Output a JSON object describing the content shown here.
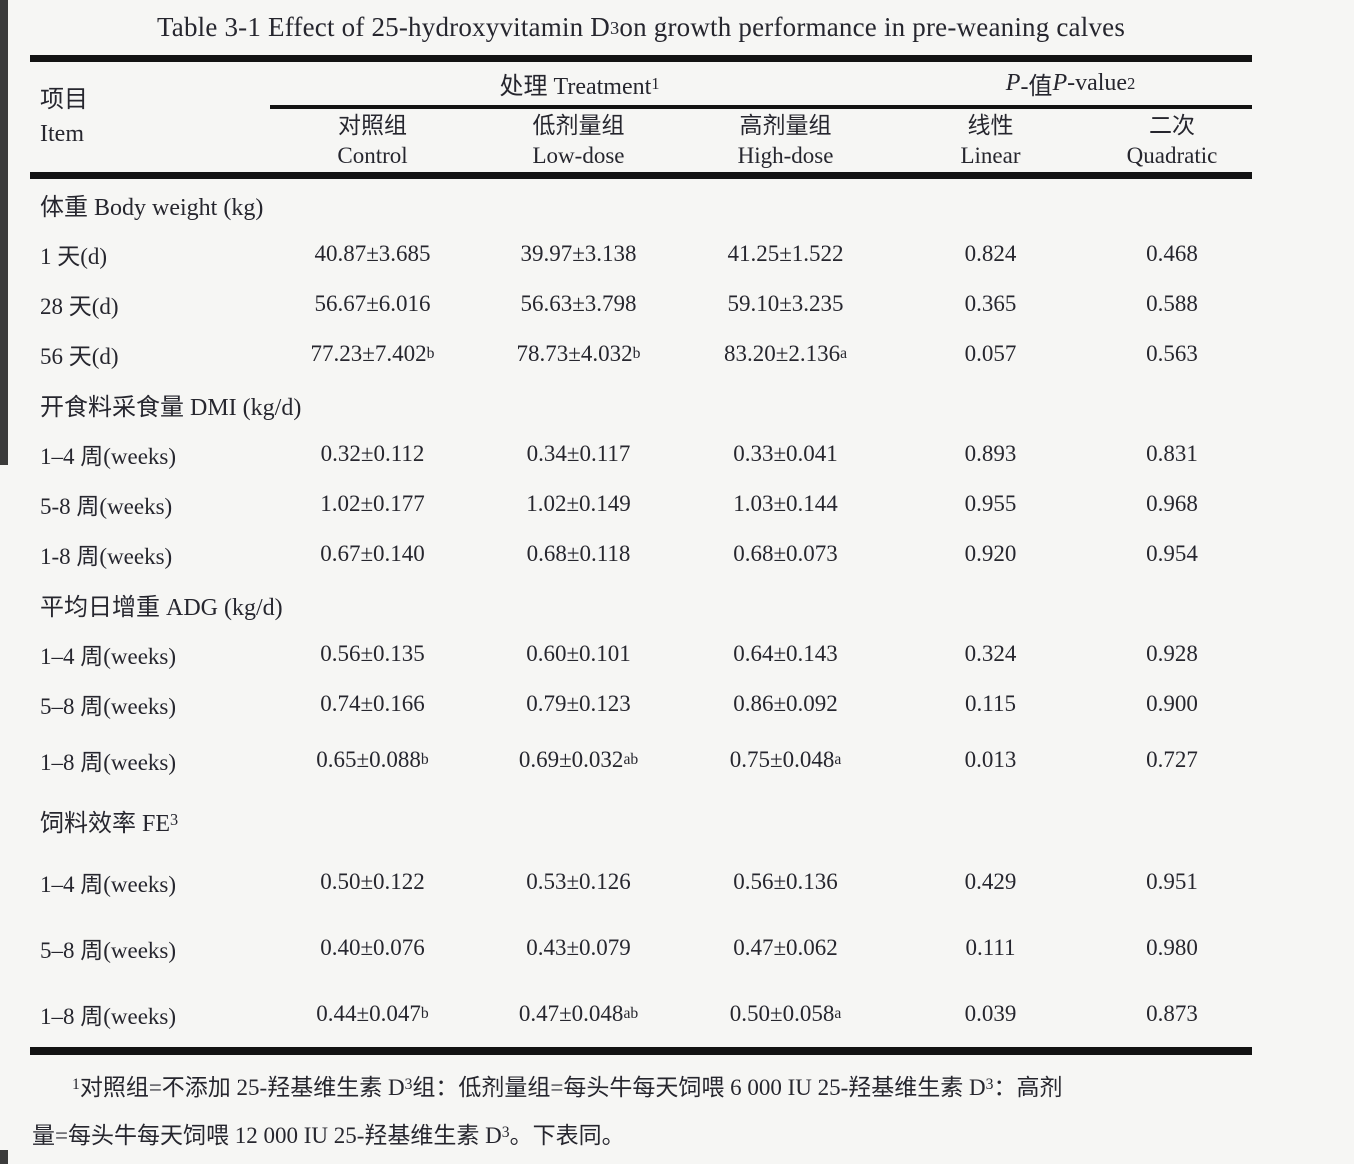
{
  "title": "Table 3-1 Effect of 25-hydroxyvitamin D{_3} on growth performance in pre-weaning calves",
  "header": {
    "item": {
      "zh": "项目",
      "en": "Item"
    },
    "treatment_group": "处理 Treatment{^1}",
    "pvalue_group": "{/P}-值 {/P}-value{^2}",
    "columns": [
      {
        "zh": "对照组",
        "en": "Control"
      },
      {
        "zh": "低剂量组",
        "en": "Low-dose"
      },
      {
        "zh": "高剂量组",
        "en": "High-dose"
      },
      {
        "zh": "线性",
        "en": "Linear"
      },
      {
        "zh": "二次",
        "en": "Quadratic"
      }
    ]
  },
  "sections": [
    {
      "label": "体重 Body weight (kg)",
      "rows": [
        {
          "item": "1 天(d)",
          "values": [
            "40.87±3.685",
            "39.97±3.138",
            "41.25±1.522",
            "0.824",
            "0.468"
          ]
        },
        {
          "item": "28 天(d)",
          "values": [
            "56.67±6.016",
            "56.63±3.798",
            "59.10±3.235",
            "0.365",
            "0.588"
          ]
        },
        {
          "item": "56 天(d)",
          "values": [
            "77.23±7.402{^b}",
            "78.73±4.032{^b}",
            "83.20±2.136{^a}",
            "0.057",
            "0.563"
          ]
        }
      ]
    },
    {
      "label": "开食料采食量 DMI (kg/d)",
      "rows": [
        {
          "item": "1–4 周(weeks)",
          "values": [
            "0.32±0.112",
            "0.34±0.117",
            "0.33±0.041",
            "0.893",
            "0.831"
          ]
        },
        {
          "item": "5-8 周(weeks)",
          "values": [
            "1.02±0.177",
            "1.02±0.149",
            "1.03±0.144",
            "0.955",
            "0.968"
          ]
        },
        {
          "item": "1-8 周(weeks)",
          "values": [
            "0.67±0.140",
            "0.68±0.118",
            "0.68±0.073",
            "0.920",
            "0.954"
          ]
        }
      ]
    },
    {
      "label": "平均日增重 ADG (kg/d)",
      "rows": [
        {
          "item": "1–4 周(weeks)",
          "values": [
            "0.56±0.135",
            "0.60±0.101",
            "0.64±0.143",
            "0.324",
            "0.928"
          ]
        },
        {
          "item": "5–8 周(weeks)",
          "values": [
            "0.74±0.166",
            "0.79±0.123",
            "0.86±0.092",
            "0.115",
            "0.900"
          ]
        },
        {
          "item": "1–8 周(weeks)",
          "values": [
            "0.65±0.088{^b}",
            "0.69±0.032{^ab}",
            "0.75±0.048{^a}",
            "0.013",
            "0.727"
          ]
        }
      ]
    },
    {
      "label": "饲料效率 FE{^3}",
      "rows": [
        {
          "item": "1–4 周(weeks)",
          "values": [
            "0.50±0.122",
            "0.53±0.126",
            "0.56±0.136",
            "0.429",
            "0.951"
          ]
        },
        {
          "item": "5–8 周(weeks)",
          "values": [
            "0.40±0.076",
            "0.43±0.079",
            "0.47±0.062",
            "0.111",
            "0.980"
          ]
        },
        {
          "item": "1–8 周(weeks)",
          "values": [
            "0.44±0.047{^b}",
            "0.47±0.048{^ab}",
            "0.50±0.058{^a}",
            "0.039",
            "0.873"
          ]
        }
      ]
    }
  ],
  "footnote": {
    "lines": [
      "{^1} 对照组=不添加 25-羟基维生素 D{_3} 组：低剂量组=每头牛每天饲喂 6 000 IU 25-羟基维生素 D{_3}：高剂",
      "量=每头牛每天饲喂 12 000 IU 25-羟基维生素 D{_3}。下表同。"
    ]
  }
}
